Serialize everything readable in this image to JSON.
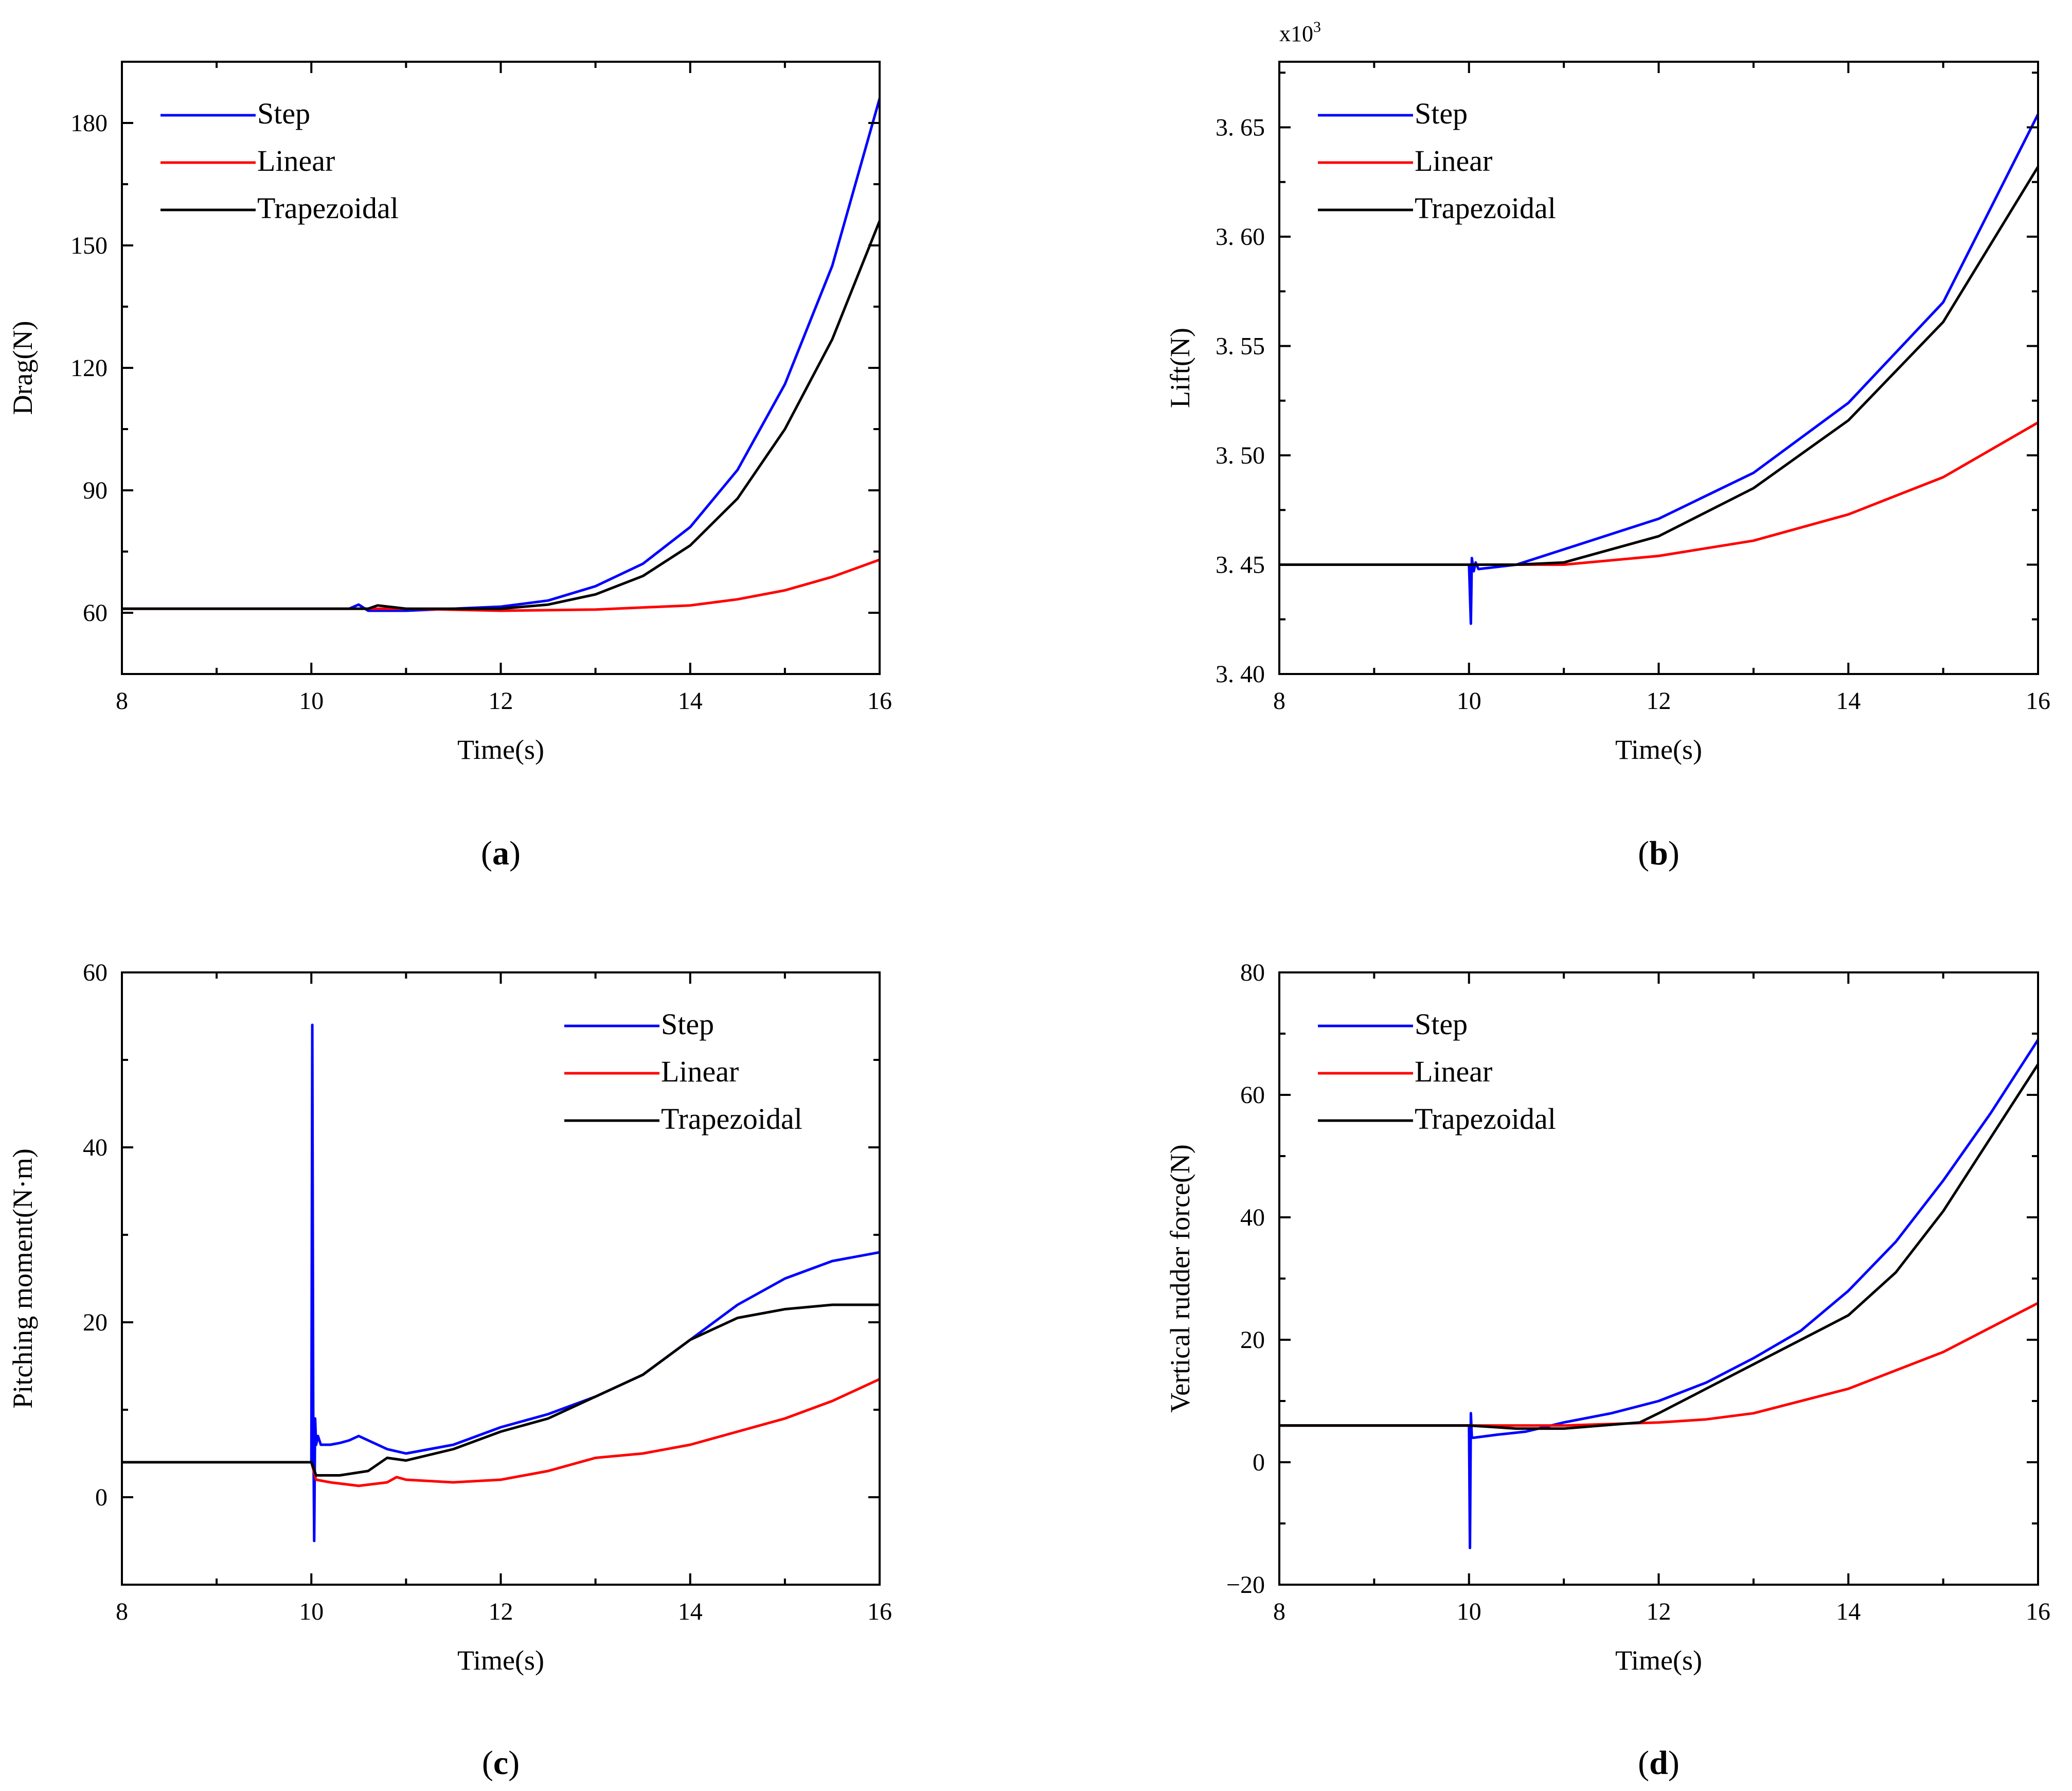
{
  "colors": {
    "Step": "#0000ff",
    "Linear": "#ff0000",
    "Trapezoidal": "#000000"
  },
  "chart_data": [
    {
      "id": "a",
      "type": "line",
      "caption": "a",
      "title": "",
      "xlabel": "Time(s)",
      "ylabel": "Drag(N)",
      "xlim": [
        8,
        16
      ],
      "ylim": [
        45,
        195
      ],
      "xticks": [
        "8",
        "10",
        "12",
        "14",
        "16"
      ],
      "yticks": [
        "60",
        "90",
        "120",
        "150",
        "180"
      ],
      "ytick_values": [
        60,
        90,
        120,
        150,
        180
      ],
      "legend_position": "top-left",
      "series": [
        {
          "name": "Step",
          "x": [
            8,
            10,
            10.4,
            10.5,
            10.6,
            11,
            11.5,
            12,
            12.5,
            13,
            13.5,
            14,
            14.5,
            15,
            15.5,
            16
          ],
          "y": [
            61,
            61,
            61,
            62,
            60.5,
            60.5,
            61,
            61.5,
            63,
            66.5,
            72,
            81,
            95,
            116,
            145,
            186
          ]
        },
        {
          "name": "Linear",
          "x": [
            8,
            10,
            10.6,
            11,
            12,
            13,
            14,
            14.5,
            15,
            15.5,
            16
          ],
          "y": [
            61,
            61,
            61,
            61,
            60.5,
            60.8,
            61.8,
            63.3,
            65.5,
            68.8,
            73
          ]
        },
        {
          "name": "Trapezoidal",
          "x": [
            8,
            10,
            10.6,
            10.7,
            11,
            12,
            12.5,
            13,
            13.5,
            14,
            14.5,
            15,
            15.5,
            16
          ],
          "y": [
            61,
            61,
            61,
            61.8,
            61,
            61,
            62,
            64.5,
            69,
            76.5,
            88,
            105,
            127,
            156
          ]
        }
      ]
    },
    {
      "id": "b",
      "type": "line",
      "caption": "b",
      "title": "",
      "xlabel": "Time(s)",
      "ylabel": "Lift(N)",
      "multiplier_base": "x10",
      "multiplier_exp": "3",
      "xlim": [
        8,
        16
      ],
      "ylim": [
        3.4,
        3.68
      ],
      "xticks": [
        "8",
        "10",
        "12",
        "14",
        "16"
      ],
      "yticks": [
        "3. 40",
        "3. 45",
        "3. 50",
        "3. 55",
        "3. 60",
        "3. 65"
      ],
      "ytick_values": [
        3.4,
        3.45,
        3.5,
        3.55,
        3.6,
        3.65
      ],
      "legend_position": "top-left",
      "series": [
        {
          "name": "Step",
          "x": [
            8,
            10,
            10.02,
            10.03,
            10.05,
            10.07,
            10.1,
            10.3,
            10.5,
            11,
            12,
            13,
            14,
            15,
            16
          ],
          "y": [
            3.45,
            3.45,
            3.423,
            3.453,
            3.447,
            3.451,
            3.448,
            3.449,
            3.45,
            3.457,
            3.471,
            3.492,
            3.524,
            3.57,
            3.656
          ]
        },
        {
          "name": "Linear",
          "x": [
            8,
            10,
            10.5,
            11,
            12,
            13,
            14,
            15,
            16
          ],
          "y": [
            3.45,
            3.45,
            3.45,
            3.45,
            3.454,
            3.461,
            3.473,
            3.49,
            3.515
          ]
        },
        {
          "name": "Trapezoidal",
          "x": [
            8,
            10,
            10.5,
            11,
            12,
            13,
            14,
            15,
            16
          ],
          "y": [
            3.45,
            3.45,
            3.45,
            3.451,
            3.463,
            3.485,
            3.516,
            3.561,
            3.632
          ]
        }
      ]
    },
    {
      "id": "c",
      "type": "line",
      "caption": "c",
      "title": "",
      "xlabel": "Time(s)",
      "ylabel": "Pitching moment(N·m)",
      "xlim": [
        8,
        16
      ],
      "ylim": [
        -10,
        60
      ],
      "xticks": [
        "8",
        "10",
        "12",
        "14",
        "16"
      ],
      "yticks": [
        "0",
        "20",
        "40",
        "60"
      ],
      "ytick_values": [
        0,
        20,
        40,
        60
      ],
      "legend_position": "top-right",
      "series": [
        {
          "name": "Step",
          "x": [
            8,
            10,
            10.01,
            10.02,
            10.03,
            10.04,
            10.05,
            10.07,
            10.1,
            10.2,
            10.3,
            10.4,
            10.5,
            10.6,
            10.8,
            11,
            11.5,
            12,
            12.5,
            13,
            13.5,
            14,
            14.5,
            15,
            15.5,
            16
          ],
          "y": [
            4,
            4,
            54,
            10,
            -5,
            9,
            6,
            7,
            6,
            6,
            6.2,
            6.5,
            7,
            6.5,
            5.5,
            5,
            6,
            8,
            9.5,
            11.5,
            14,
            18,
            22,
            25,
            27,
            28
          ]
        },
        {
          "name": "Linear",
          "x": [
            8,
            10,
            10.05,
            10.2,
            10.5,
            10.8,
            10.9,
            11,
            11.5,
            12,
            12.5,
            13,
            13.5,
            14,
            14.5,
            15,
            15.5,
            16
          ],
          "y": [
            4,
            4,
            2,
            1.7,
            1.3,
            1.7,
            2.3,
            2,
            1.7,
            2,
            3,
            4.5,
            5,
            6,
            7.5,
            9,
            11,
            13.5
          ]
        },
        {
          "name": "Trapezoidal",
          "x": [
            8,
            10,
            10.05,
            10.3,
            10.6,
            10.8,
            11,
            11.5,
            12,
            12.5,
            13,
            13.5,
            14,
            14.5,
            15,
            15.5,
            16
          ],
          "y": [
            4,
            4,
            2.5,
            2.5,
            3,
            4.5,
            4.2,
            5.5,
            7.5,
            9,
            11.5,
            14,
            18,
            20.5,
            21.5,
            22,
            22
          ]
        }
      ]
    },
    {
      "id": "d",
      "type": "line",
      "caption": "d",
      "title": "",
      "xlabel": "Time(s)",
      "ylabel": "Vertical rudder force(N)",
      "xlim": [
        8,
        16
      ],
      "ylim": [
        -20,
        80
      ],
      "xticks": [
        "8",
        "10",
        "12",
        "14",
        "16"
      ],
      "yticks": [
        "−20",
        "0",
        "20",
        "40",
        "60",
        "80"
      ],
      "ytick_values": [
        -20,
        0,
        20,
        40,
        60,
        80
      ],
      "legend_position": "top-left",
      "series": [
        {
          "name": "Step",
          "x": [
            8,
            10,
            10.01,
            10.02,
            10.03,
            10.05,
            10.3,
            10.6,
            11,
            11.5,
            12,
            12.5,
            13,
            13.5,
            14,
            14.5,
            15,
            15.5,
            16
          ],
          "y": [
            6,
            6,
            -14,
            8,
            4,
            4,
            4.5,
            5,
            6.5,
            8,
            10,
            13,
            17,
            21.5,
            28,
            36,
            46,
            57,
            69
          ]
        },
        {
          "name": "Linear",
          "x": [
            8,
            10,
            11,
            12,
            12.5,
            13,
            14,
            15,
            16
          ],
          "y": [
            6,
            6,
            6,
            6.5,
            7,
            8,
            12,
            18,
            26
          ]
        },
        {
          "name": "Trapezoidal",
          "x": [
            8,
            10,
            10.5,
            11,
            11.8,
            12,
            12.5,
            13,
            13.5,
            14,
            14.5,
            15,
            15.5,
            16
          ],
          "y": [
            6,
            6,
            5.5,
            5.5,
            6.5,
            8,
            12,
            16,
            20,
            24,
            31,
            41,
            53,
            65
          ]
        }
      ]
    }
  ]
}
